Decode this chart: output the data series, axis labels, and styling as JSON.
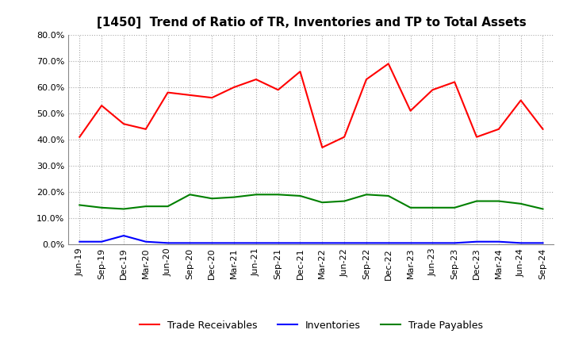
{
  "title": "[1450]  Trend of Ratio of TR, Inventories and TP to Total Assets",
  "labels": [
    "Jun-19",
    "Sep-19",
    "Dec-19",
    "Mar-20",
    "Jun-20",
    "Sep-20",
    "Dec-20",
    "Mar-21",
    "Jun-21",
    "Sep-21",
    "Dec-21",
    "Mar-22",
    "Jun-22",
    "Sep-22",
    "Dec-22",
    "Mar-23",
    "Jun-23",
    "Sep-23",
    "Dec-23",
    "Mar-24",
    "Jun-24",
    "Sep-24"
  ],
  "trade_receivables": [
    0.41,
    0.53,
    0.46,
    0.44,
    0.58,
    0.57,
    0.56,
    0.6,
    0.63,
    0.59,
    0.66,
    0.37,
    0.41,
    0.63,
    0.69,
    0.51,
    0.59,
    0.62,
    0.41,
    0.44,
    0.55,
    0.44
  ],
  "inventories": [
    0.01,
    0.01,
    0.033,
    0.01,
    0.005,
    0.005,
    0.005,
    0.005,
    0.005,
    0.005,
    0.005,
    0.005,
    0.005,
    0.005,
    0.005,
    0.005,
    0.005,
    0.005,
    0.01,
    0.01,
    0.005,
    0.005
  ],
  "trade_payables": [
    0.15,
    0.14,
    0.135,
    0.145,
    0.145,
    0.19,
    0.175,
    0.18,
    0.19,
    0.19,
    0.185,
    0.16,
    0.165,
    0.19,
    0.185,
    0.14,
    0.14,
    0.14,
    0.165,
    0.165,
    0.155,
    0.135
  ],
  "ylim": [
    0.0,
    0.8
  ],
  "yticks": [
    0.0,
    0.1,
    0.2,
    0.3,
    0.4,
    0.5,
    0.6,
    0.7,
    0.8
  ],
  "line_colors": {
    "trade_receivables": "#ff0000",
    "inventories": "#0000ff",
    "trade_payables": "#008000"
  },
  "legend_labels": [
    "Trade Receivables",
    "Inventories",
    "Trade Payables"
  ],
  "background_color": "#ffffff",
  "grid_color": "#aaaaaa",
  "title_fontsize": 11,
  "tick_fontsize": 8,
  "legend_fontsize": 9
}
